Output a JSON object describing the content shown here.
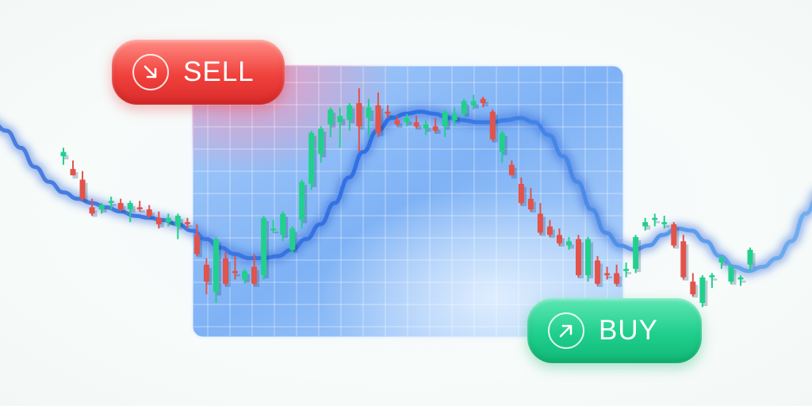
{
  "buttons": {
    "sell": {
      "label": "SELL",
      "color": "#f0413c",
      "icon": "arrow-down-right-icon"
    },
    "buy": {
      "label": "BUY",
      "color": "#1fcf8b",
      "icon": "arrow-up-right-icon"
    }
  },
  "colors": {
    "up": "#22d08e",
    "down": "#e2534b",
    "trend": "#3f7fe6",
    "panel": "#8ab8f7"
  },
  "chart_data": {
    "type": "candlestick",
    "title": "",
    "xlabel": "",
    "ylabel": "",
    "grid": true,
    "ylim": [
      0,
      100
    ],
    "candles": [
      {
        "o": 72,
        "h": 76,
        "l": 68,
        "c": 74
      },
      {
        "o": 66,
        "h": 70,
        "l": 63,
        "c": 63
      },
      {
        "o": 61,
        "h": 65,
        "l": 51,
        "c": 52
      },
      {
        "o": 48,
        "h": 52,
        "l": 44,
        "c": 45
      },
      {
        "o": 47,
        "h": 50,
        "l": 45,
        "c": 49
      },
      {
        "o": 50,
        "h": 53,
        "l": 47,
        "c": 51
      },
      {
        "o": 50,
        "h": 52,
        "l": 46,
        "c": 47
      },
      {
        "o": 47,
        "h": 51,
        "l": 41,
        "c": 50
      },
      {
        "o": 48,
        "h": 51,
        "l": 46,
        "c": 47
      },
      {
        "o": 47,
        "h": 49,
        "l": 43,
        "c": 44
      },
      {
        "o": 43,
        "h": 46,
        "l": 38,
        "c": 40
      },
      {
        "o": 41,
        "h": 45,
        "l": 39,
        "c": 43
      },
      {
        "o": 39,
        "h": 45,
        "l": 33,
        "c": 44
      },
      {
        "o": 41,
        "h": 43,
        "l": 38,
        "c": 40
      },
      {
        "o": 35,
        "h": 40,
        "l": 25,
        "c": 26
      },
      {
        "o": 21,
        "h": 24,
        "l": 7,
        "c": 13
      },
      {
        "o": 8,
        "h": 34,
        "l": 3,
        "c": 33
      },
      {
        "o": 24,
        "h": 27,
        "l": 11,
        "c": 12
      },
      {
        "o": 18,
        "h": 25,
        "l": 14,
        "c": 17
      },
      {
        "o": 14,
        "h": 19,
        "l": 12,
        "c": 18
      },
      {
        "o": 20,
        "h": 26,
        "l": 11,
        "c": 12
      },
      {
        "o": 16,
        "h": 44,
        "l": 14,
        "c": 43
      },
      {
        "o": 38,
        "h": 42,
        "l": 36,
        "c": 38
      },
      {
        "o": 35,
        "h": 46,
        "l": 32,
        "c": 45
      },
      {
        "o": 28,
        "h": 39,
        "l": 26,
        "c": 38
      },
      {
        "o": 42,
        "h": 61,
        "l": 38,
        "c": 60
      },
      {
        "o": 59,
        "h": 84,
        "l": 56,
        "c": 83
      },
      {
        "o": 73,
        "h": 86,
        "l": 69,
        "c": 85
      },
      {
        "o": 87,
        "h": 95,
        "l": 81,
        "c": 94
      },
      {
        "o": 88,
        "h": 95,
        "l": 76,
        "c": 91
      },
      {
        "o": 89,
        "h": 97,
        "l": 84,
        "c": 96
      },
      {
        "o": 97,
        "h": 104,
        "l": 74,
        "c": 86
      },
      {
        "o": 90,
        "h": 99,
        "l": 81,
        "c": 95
      },
      {
        "o": 96,
        "h": 102,
        "l": 81,
        "c": 83
      },
      {
        "o": 93,
        "h": 96,
        "l": 90,
        "c": 92
      },
      {
        "o": 89,
        "h": 91,
        "l": 86,
        "c": 87
      },
      {
        "o": 88,
        "h": 92,
        "l": 86,
        "c": 90
      },
      {
        "o": 88,
        "h": 91,
        "l": 85,
        "c": 86
      },
      {
        "o": 85,
        "h": 89,
        "l": 82,
        "c": 87
      },
      {
        "o": 86,
        "h": 90,
        "l": 83,
        "c": 84
      },
      {
        "o": 86,
        "h": 94,
        "l": 81,
        "c": 93
      },
      {
        "o": 89,
        "h": 95,
        "l": 86,
        "c": 92
      },
      {
        "o": 92,
        "h": 99,
        "l": 90,
        "c": 98
      },
      {
        "o": 96,
        "h": 101,
        "l": 94,
        "c": 98
      },
      {
        "o": 99,
        "h": 100,
        "l": 95,
        "c": 97
      },
      {
        "o": 93,
        "h": 94,
        "l": 79,
        "c": 80
      },
      {
        "o": 74,
        "h": 84,
        "l": 69,
        "c": 83
      },
      {
        "o": 68,
        "h": 70,
        "l": 63,
        "c": 63
      },
      {
        "o": 59,
        "h": 62,
        "l": 49,
        "c": 50
      },
      {
        "o": 52,
        "h": 57,
        "l": 46,
        "c": 47
      },
      {
        "o": 45,
        "h": 50,
        "l": 35,
        "c": 36
      },
      {
        "o": 39,
        "h": 42,
        "l": 34,
        "c": 35
      },
      {
        "o": 35,
        "h": 38,
        "l": 30,
        "c": 31
      },
      {
        "o": 30,
        "h": 34,
        "l": 28,
        "c": 32
      },
      {
        "o": 33,
        "h": 35,
        "l": 15,
        "c": 16
      },
      {
        "o": 16,
        "h": 34,
        "l": 13,
        "c": 33
      },
      {
        "o": 23,
        "h": 25,
        "l": 11,
        "c": 12
      },
      {
        "o": 17,
        "h": 20,
        "l": 14,
        "c": 16
      },
      {
        "o": 17,
        "h": 21,
        "l": 11,
        "c": 12
      },
      {
        "o": 18,
        "h": 22,
        "l": 15,
        "c": 19
      },
      {
        "o": 19,
        "h": 35,
        "l": 17,
        "c": 34
      },
      {
        "o": 39,
        "h": 43,
        "l": 37,
        "c": 41
      },
      {
        "o": 42,
        "h": 45,
        "l": 39,
        "c": 43
      },
      {
        "o": 40,
        "h": 44,
        "l": 38,
        "c": 41
      },
      {
        "o": 40,
        "h": 41,
        "l": 29,
        "c": 30
      },
      {
        "o": 32,
        "h": 35,
        "l": 14,
        "c": 15
      },
      {
        "o": 13,
        "h": 17,
        "l": 6,
        "c": 7
      },
      {
        "o": 3,
        "h": 16,
        "l": 1,
        "c": 15
      },
      {
        "o": 15,
        "h": 17,
        "l": 10,
        "c": 16
      },
      {
        "o": 22,
        "h": 25,
        "l": 19,
        "c": 24
      },
      {
        "o": 13,
        "h": 21,
        "l": 12,
        "c": 20
      },
      {
        "o": 14,
        "h": 16,
        "l": 11,
        "c": 15
      },
      {
        "o": 21,
        "h": 29,
        "l": 18,
        "c": 28
      }
    ],
    "trend": [
      88,
      84,
      76,
      67,
      60,
      55,
      52,
      50,
      48,
      46,
      44,
      43,
      42,
      40,
      37,
      33,
      29,
      26,
      24,
      24,
      25,
      28,
      33,
      40,
      50,
      62,
      74,
      84,
      90,
      92,
      93,
      92,
      90,
      89,
      88,
      88,
      89,
      90,
      88,
      82,
      72,
      60,
      47,
      36,
      30,
      28,
      30,
      35,
      38,
      37,
      32,
      25,
      20,
      18,
      20,
      24,
      32,
      45,
      55
    ]
  }
}
